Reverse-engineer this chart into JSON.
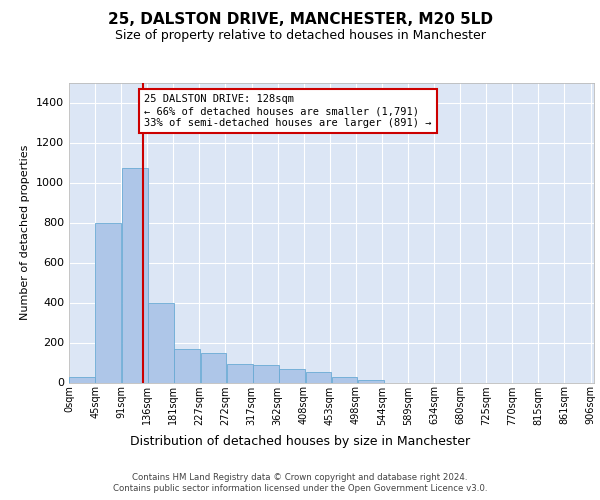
{
  "title_line1": "25, DALSTON DRIVE, MANCHESTER, M20 5LD",
  "title_line2": "Size of property relative to detached houses in Manchester",
  "xlabel": "Distribution of detached houses by size in Manchester",
  "ylabel": "Number of detached properties",
  "bar_left_edges": [
    0,
    45,
    91,
    136,
    181,
    227,
    272,
    317,
    362,
    408,
    453,
    498,
    544,
    589,
    634,
    680,
    725,
    770,
    815,
    861
  ],
  "bar_heights": [
    28,
    800,
    1075,
    400,
    170,
    150,
    95,
    90,
    70,
    55,
    28,
    15,
    0,
    0,
    0,
    0,
    0,
    0,
    0,
    0
  ],
  "bin_width": 45,
  "bar_color": "#aec6e8",
  "bar_edgecolor": "#6aaad4",
  "ylim": [
    0,
    1500
  ],
  "yticks": [
    0,
    200,
    400,
    600,
    800,
    1000,
    1200,
    1400
  ],
  "xtick_labels": [
    "0sqm",
    "45sqm",
    "91sqm",
    "136sqm",
    "181sqm",
    "227sqm",
    "272sqm",
    "317sqm",
    "362sqm",
    "408sqm",
    "453sqm",
    "498sqm",
    "544sqm",
    "589sqm",
    "634sqm",
    "680sqm",
    "725sqm",
    "770sqm",
    "815sqm",
    "861sqm",
    "906sqm"
  ],
  "vline_x": 128,
  "vline_color": "#cc0000",
  "annotation_text": "25 DALSTON DRIVE: 128sqm\n← 66% of detached houses are smaller (1,791)\n33% of semi-detached houses are larger (891) →",
  "annotation_box_edgecolor": "#cc0000",
  "annotation_box_facecolor": "#ffffff",
  "plot_bg_color": "#dce6f5",
  "fig_bg_color": "#ffffff",
  "grid_color": "#ffffff",
  "footer_line1": "Contains HM Land Registry data © Crown copyright and database right 2024.",
  "footer_line2": "Contains public sector information licensed under the Open Government Licence v3.0.",
  "title1_fontsize": 11,
  "title2_fontsize": 9,
  "ylabel_fontsize": 8,
  "xlabel_fontsize": 9,
  "ytick_fontsize": 8,
  "xtick_fontsize": 7,
  "annotation_fontsize": 7.5,
  "footer_fontsize": 6.2
}
